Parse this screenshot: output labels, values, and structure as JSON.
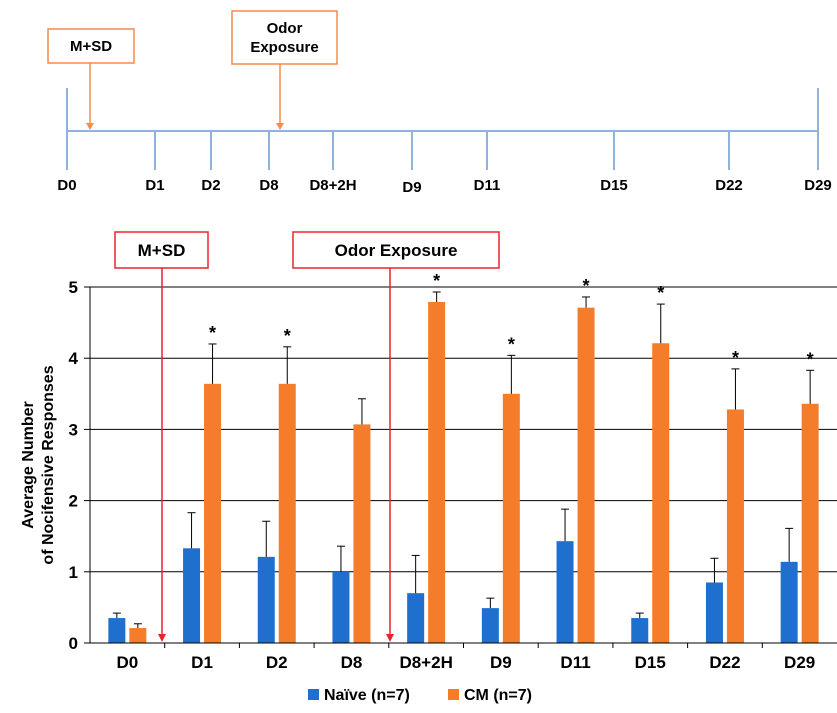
{
  "timeline": {
    "days": [
      "D0",
      "D1",
      "D2",
      "D8",
      "D8+2H",
      "D9",
      "D11",
      "D15",
      "D22",
      "D29"
    ],
    "events": [
      {
        "label_lines": [
          "M+SD"
        ],
        "at": "D0"
      },
      {
        "label_lines": [
          "Odor",
          "Exposure"
        ],
        "at": "D8"
      }
    ],
    "line_color": "#8fb3dc",
    "event_color": "#f58b4c"
  },
  "chart_data": {
    "type": "bar",
    "categories": [
      "D0",
      "D1",
      "D2",
      "D8",
      "D8+2H",
      "D9",
      "D11",
      "D15",
      "D22",
      "D29"
    ],
    "series": [
      {
        "name": "Naïve (n=7)",
        "color": "#1f6fce",
        "values": [
          0.35,
          1.33,
          1.21,
          1.0,
          0.7,
          0.49,
          1.43,
          0.35,
          0.85,
          1.14
        ],
        "errors": [
          0.07,
          0.5,
          0.5,
          0.36,
          0.53,
          0.14,
          0.45,
          0.07,
          0.34,
          0.47
        ]
      },
      {
        "name": "CM (n=7)",
        "color": "#f47c2a",
        "values": [
          0.21,
          3.64,
          3.64,
          3.07,
          4.79,
          3.5,
          4.71,
          4.21,
          3.28,
          3.36
        ],
        "errors": [
          0.06,
          0.56,
          0.52,
          0.36,
          0.14,
          0.54,
          0.15,
          0.55,
          0.57,
          0.47
        ]
      }
    ],
    "significant": [
      "D1",
      "D2",
      "D8+2H",
      "D9",
      "D11",
      "D15",
      "D22",
      "D29"
    ],
    "significance_marker": "*",
    "ylabel_lines": [
      "Average Number",
      "of Nocifensive Responses"
    ],
    "yticks": [
      0,
      1,
      2,
      3,
      4,
      5
    ],
    "ylim": [
      0,
      5
    ],
    "grid": true,
    "legend_position": "bottom",
    "annotations": [
      {
        "text": "M+SD",
        "between": [
          "D0",
          "D1"
        ]
      },
      {
        "text": "Odor Exposure",
        "between": [
          "D8",
          "D8+2H"
        ]
      }
    ],
    "annotation_color": "#e8242c"
  }
}
